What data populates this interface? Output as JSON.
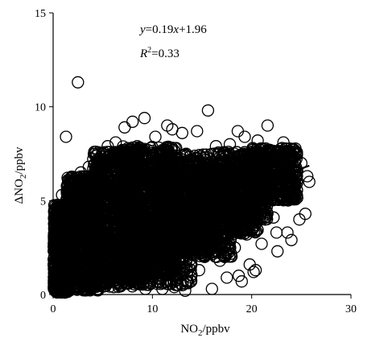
{
  "chart_data": {
    "type": "scatter",
    "title": "",
    "xlabel": {
      "base": "NO",
      "sub": "2",
      "rest": "/ppbv"
    },
    "ylabel": {
      "prefix": "Δ",
      "base": "NO",
      "sub": "2",
      "rest": "/ppbv"
    },
    "xlim": [
      0,
      30
    ],
    "ylim": [
      0,
      15
    ],
    "xticks": [
      "0",
      "10",
      "20",
      "30"
    ],
    "yticks": [
      "0",
      "5",
      "10",
      "15"
    ],
    "grid": false,
    "marker": "open-circle",
    "marker_color": "#000000",
    "annotation": {
      "equation": {
        "lhs": "y",
        "eq": "=0.19",
        "var": "x",
        "rest": "+1.96"
      },
      "r2": {
        "base": "R",
        "sup": "2",
        "rest": "=0.33"
      }
    },
    "fit": {
      "slope": 0.19,
      "intercept": 1.96,
      "x_range": [
        0,
        25.8
      ]
    },
    "points": [
      [
        2.5,
        11.3
      ],
      [
        1.3,
        8.4
      ],
      [
        15.6,
        9.8
      ],
      [
        16.0,
        0.3
      ],
      [
        12.2,
        0.4
      ],
      [
        21.6,
        9.0
      ],
      [
        22.6,
        2.3
      ],
      [
        21.0,
        2.7
      ],
      [
        20.2,
        1.2
      ],
      [
        20.4,
        1.3
      ],
      [
        18.7,
        1.0
      ],
      [
        19.0,
        0.7
      ],
      [
        25.8,
        6.0
      ],
      [
        25.6,
        6.3
      ],
      [
        24.0,
        2.9
      ],
      [
        23.6,
        3.3
      ],
      [
        25.4,
        4.3
      ],
      [
        9.2,
        9.4
      ],
      [
        8.0,
        9.2
      ],
      [
        7.2,
        8.9
      ],
      [
        11.5,
        9.0
      ],
      [
        13.0,
        8.6
      ],
      [
        17.8,
        8.0
      ],
      [
        18.6,
        8.7
      ],
      [
        19.3,
        8.4
      ],
      [
        20.6,
        8.2
      ],
      [
        12.0,
        8.8
      ],
      [
        10.3,
        8.4
      ],
      [
        14.5,
        8.7
      ],
      [
        3.6,
        6.8
      ],
      [
        4.3,
        7.6
      ],
      [
        0.9,
        5.3
      ],
      [
        1.5,
        6.1
      ],
      [
        0.2,
        3.6
      ],
      [
        22.5,
        3.3
      ],
      [
        22.2,
        4.1
      ],
      [
        21.2,
        4.5
      ],
      [
        19.8,
        1.6
      ],
      [
        17.5,
        0.9
      ],
      [
        16.8,
        1.8
      ],
      [
        24.8,
        4.0
      ],
      [
        13.3,
        0.2
      ],
      [
        11.0,
        0.3
      ],
      [
        9.3,
        0.3
      ],
      [
        6.1,
        0.4
      ],
      [
        3.0,
        0.5
      ],
      [
        0.4,
        0.3
      ],
      [
        0.8,
        1.6
      ],
      [
        15.2,
        2.1
      ],
      [
        14.7,
        1.3
      ],
      [
        12.8,
        7.4
      ],
      [
        16.2,
        7.5
      ],
      [
        18.0,
        5.9
      ],
      [
        17.0,
        4.5
      ],
      [
        14.4,
        3.3
      ],
      [
        16.4,
        7.9
      ],
      [
        20.1,
        7.8
      ],
      [
        23.2,
        8.1
      ],
      [
        24.5,
        7.5
      ],
      [
        25.0,
        7.0
      ],
      [
        22.8,
        7.6
      ],
      [
        21.5,
        6.4
      ],
      [
        5.5,
        7.9
      ],
      [
        6.3,
        8.1
      ],
      [
        2.2,
        5.9
      ],
      [
        2.8,
        6.5
      ],
      [
        1.0,
        4.6
      ],
      [
        0.6,
        2.6
      ],
      [
        8.5,
        2.0
      ],
      [
        10.1,
        1.4
      ],
      [
        13.9,
        0.7
      ],
      [
        18.3,
        2.5
      ],
      [
        19.5,
        3.2
      ],
      [
        15.8,
        2.6
      ]
    ],
    "blobs": [
      {
        "x": [
          0.05,
          1.6
        ],
        "y": [
          0.1,
          4.8
        ],
        "n": 700
      },
      {
        "x": [
          1.3,
          4.6
        ],
        "y": [
          0.2,
          6.3
        ],
        "n": 900
      },
      {
        "x": [
          4.0,
          8.2
        ],
        "y": [
          0.4,
          7.6
        ],
        "n": 1100
      },
      {
        "x": [
          6.8,
          12.4
        ],
        "y": [
          1.2,
          7.9
        ],
        "n": 1100
      },
      {
        "x": [
          8.0,
          14.0
        ],
        "y": [
          0.5,
          4.2
        ],
        "n": 500
      },
      {
        "x": [
          10.8,
          16.2
        ],
        "y": [
          2.4,
          7.5
        ],
        "n": 750
      },
      {
        "x": [
          13.8,
          18.0
        ],
        "y": [
          2.0,
          6.8
        ],
        "n": 550
      },
      {
        "x": [
          16.6,
          21.6
        ],
        "y": [
          3.9,
          7.6
        ],
        "n": 600
      },
      {
        "x": [
          19.8,
          24.6
        ],
        "y": [
          5.0,
          7.8
        ],
        "n": 500
      },
      {
        "x": [
          17.8,
          20.6
        ],
        "y": [
          3.2,
          5.4
        ],
        "n": 220
      }
    ]
  }
}
